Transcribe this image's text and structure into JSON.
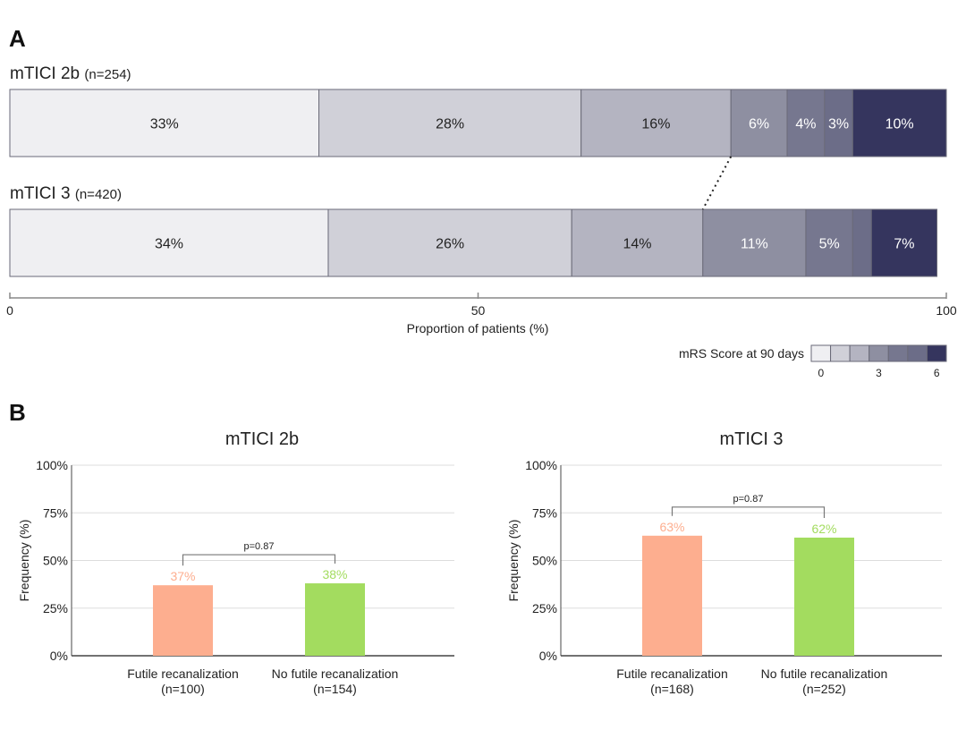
{
  "panel_a_label": "A",
  "panel_b_label": "B",
  "chart_data": [
    {
      "type": "bar",
      "orientation": "horizontal-stacked",
      "xlabel": "Proportion of patients (%)",
      "xlim": [
        0,
        100
      ],
      "xticks": [
        "0",
        "50",
        "100"
      ],
      "legend": {
        "title": "mRS Score at 90 days",
        "tick_labels": [
          "0",
          "3",
          "6"
        ],
        "placement": "bottom-right"
      },
      "categories": [
        "0",
        "1",
        "2",
        "3",
        "4",
        "5",
        "6"
      ],
      "colors": [
        "#efeff2",
        "#d0d0d8",
        "#b4b4c1",
        "#8e8fa1",
        "#76778f",
        "#6c6d88",
        "#35355e"
      ],
      "rows": [
        {
          "name": "mTICI 2b",
          "n": "(n=254)",
          "values": [
            33,
            28,
            16,
            6,
            4,
            3,
            10
          ],
          "labels": [
            "33%",
            "28%",
            "16%",
            "6%",
            "4%",
            "3%",
            "10%"
          ]
        },
        {
          "name": "mTICI 3",
          "n": "(n=420)",
          "values": [
            34,
            26,
            14,
            11,
            5,
            2,
            7
          ],
          "labels": [
            "34%",
            "26%",
            "14%",
            "11%",
            "5%",
            "",
            "7%"
          ]
        }
      ]
    },
    {
      "type": "bar",
      "title": "mTICI 2b",
      "ylabel": "Frequency (%)",
      "ylim": [
        0,
        100
      ],
      "yticks": [
        "0%",
        "25%",
        "50%",
        "75%",
        "100%"
      ],
      "categories": [
        "Futile recanalization",
        "No futile recanalization"
      ],
      "category_n": [
        "(n=100)",
        "(n=154)"
      ],
      "values": [
        37,
        38
      ],
      "labels": [
        "37%",
        "38%"
      ],
      "colors": [
        "#fdae8f",
        "#a3dc5f"
      ],
      "annotation": "p=0.87",
      "grid": true
    },
    {
      "type": "bar",
      "title": "mTICI 3",
      "ylabel": "Frequency (%)",
      "ylim": [
        0,
        100
      ],
      "yticks": [
        "0%",
        "25%",
        "50%",
        "75%",
        "100%"
      ],
      "categories": [
        "Futile recanalization",
        "No futile recanalization"
      ],
      "category_n": [
        "(n=168)",
        "(n=252)"
      ],
      "values": [
        63,
        62
      ],
      "labels": [
        "63%",
        "62%"
      ],
      "colors": [
        "#fdae8f",
        "#a3dc5f"
      ],
      "annotation": "p=0.87",
      "grid": true
    }
  ]
}
